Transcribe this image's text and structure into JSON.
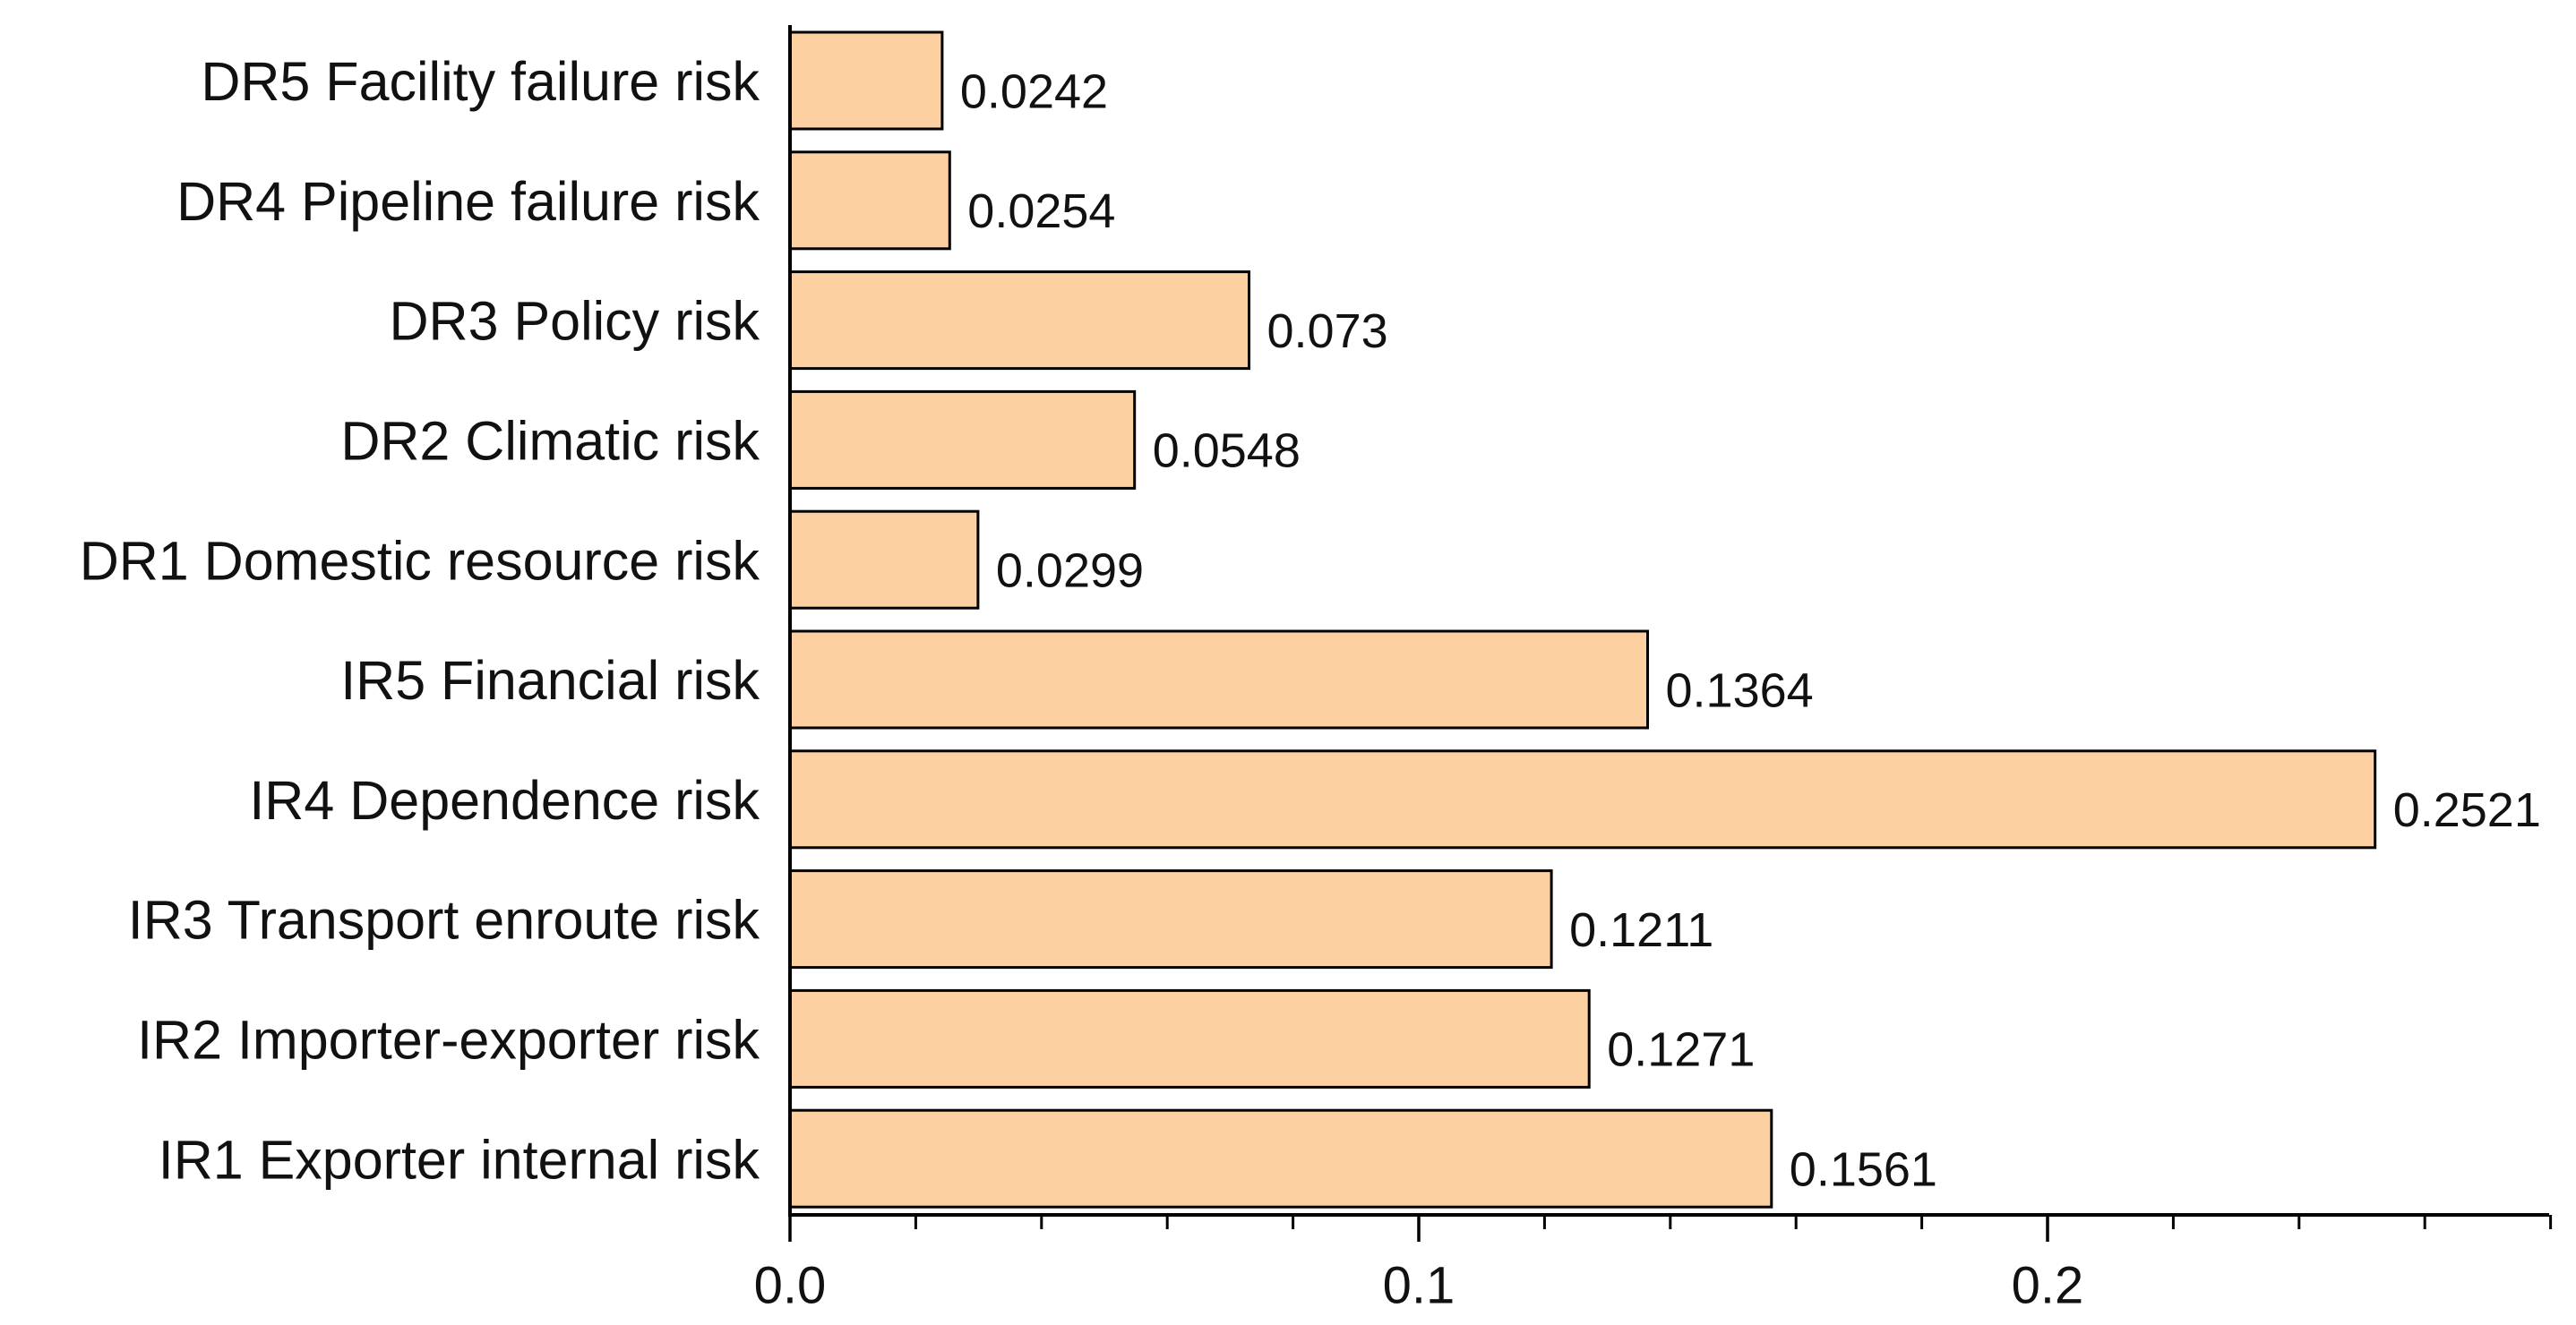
{
  "chart_data": {
    "type": "bar",
    "orientation": "horizontal",
    "title": "",
    "xlabel": "",
    "ylabel": "",
    "categories": [
      "DR5 Facility failure risk",
      "DR4 Pipeline failure risk",
      "DR3 Policy risk",
      "DR2 Climatic risk",
      "DR1 Domestic resource risk",
      "IR5 Financial risk",
      "IR4 Dependence risk",
      "IR3 Transport enroute risk",
      "IR2 Importer-exporter risk",
      "IR1 Exporter internal risk"
    ],
    "values": [
      0.0242,
      0.0254,
      0.073,
      0.0548,
      0.0299,
      0.1364,
      0.2521,
      0.1211,
      0.1271,
      0.1561
    ],
    "value_labels": [
      "0.0242",
      "0.0254",
      "0.073",
      "0.0548",
      "0.0299",
      "0.1364",
      "0.2521",
      "0.1211",
      "0.1271",
      "0.1561"
    ],
    "xlim": [
      0,
      0.28
    ],
    "major_ticks": [
      0.0,
      0.1,
      0.2
    ],
    "tick_labels": [
      "0.0",
      "0.1",
      "0.2"
    ],
    "minor_tick_step": 0.02,
    "grid": false,
    "legend": "none",
    "bar_color": "#FDD0A2",
    "bar_edge_color": "#000000"
  }
}
